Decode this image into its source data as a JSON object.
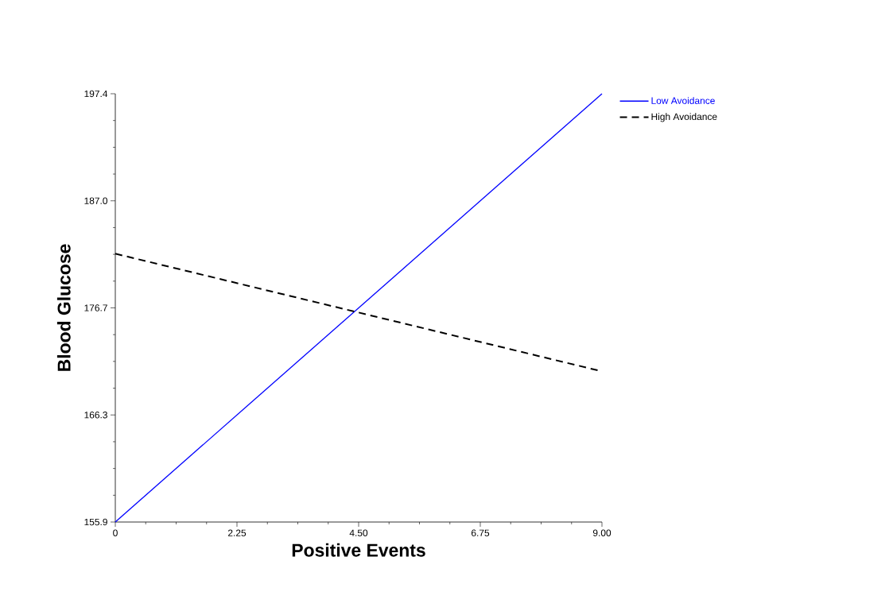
{
  "chart_data": {
    "type": "line",
    "xlabel": "Positive Events",
    "ylabel": "Blood Glucose",
    "x": [
      0,
      9
    ],
    "series": [
      {
        "name": "Low Avoidance",
        "color": "#0000ff",
        "line_style": "solid",
        "values": [
          155.9,
          197.4
        ]
      },
      {
        "name": "High Avoidance",
        "color": "#000000",
        "line_style": "dashed",
        "values": [
          181.9,
          170.5
        ]
      }
    ],
    "xlim": [
      0,
      9
    ],
    "ylim": [
      155.9,
      197.4
    ],
    "xticks": [
      0,
      2.25,
      {
        "value": 4.5,
        "label": "4.50"
      },
      6.75,
      {
        "value": 9,
        "label": "9.00"
      }
    ],
    "yticks": [
      155.9,
      {
        "value": 166.275,
        "label": "166.3"
      },
      {
        "value": 176.65,
        "label": "176.7"
      },
      {
        "value": 187.025,
        "label": "187.0"
      },
      197.4
    ],
    "grid": false,
    "legend": "top right",
    "marker": "none"
  }
}
